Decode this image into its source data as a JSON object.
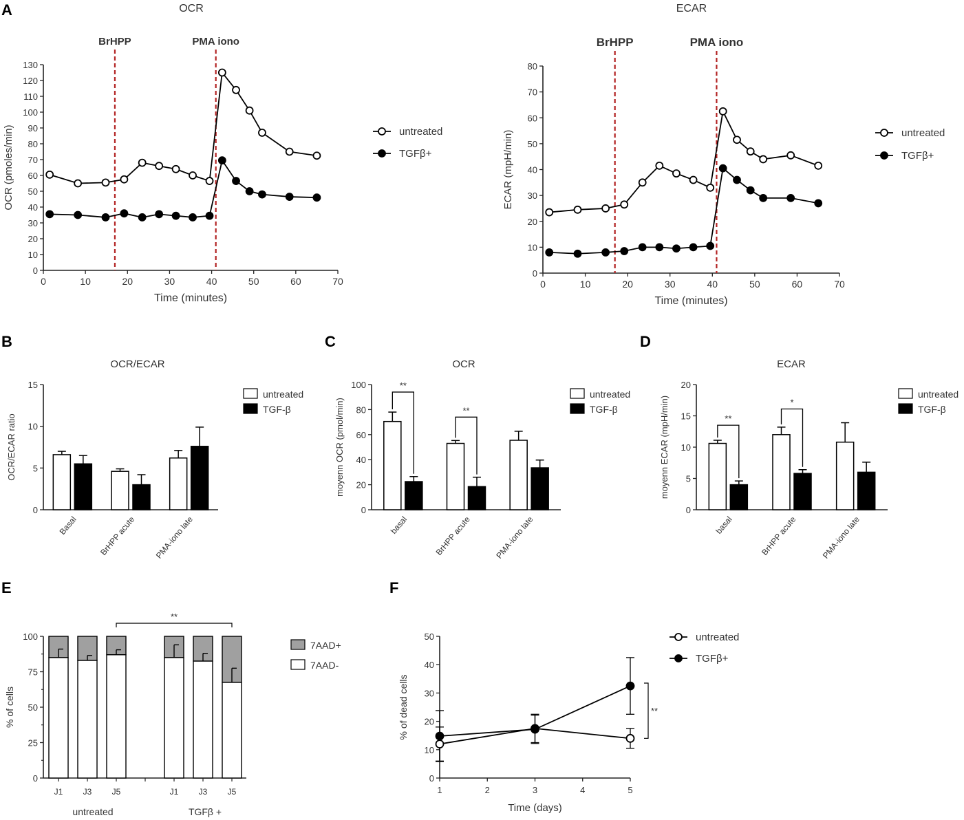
{
  "panel_labels": [
    "A",
    "B",
    "C",
    "D",
    "E",
    "F"
  ],
  "chart_data": [
    {
      "id": "A-OCR",
      "type": "line",
      "title": "OCR",
      "xlabel": "Time (minutes)",
      "ylabel": "OCR (pmoles/min)",
      "xlim": [
        0,
        70
      ],
      "ylim": [
        0,
        130
      ],
      "xticks": [
        0,
        10,
        20,
        30,
        40,
        50,
        60,
        70
      ],
      "yticks": [
        0,
        10,
        20,
        30,
        40,
        50,
        60,
        70,
        80,
        90,
        100,
        110,
        120,
        130
      ],
      "injections": [
        {
          "label": "BrHPP",
          "x": 17
        },
        {
          "label": "PMA iono",
          "x": 41
        }
      ],
      "injection_color": "#b22222",
      "legend": [
        "untreated",
        "TGFβ+"
      ],
      "series": [
        {
          "name": "untreated",
          "marker": "open",
          "x": [
            1.5,
            8.2,
            14.8,
            19.2,
            23.5,
            27.5,
            31.5,
            35.5,
            39.5,
            42.5,
            45.8,
            49,
            52,
            58.5,
            65
          ],
          "y": [
            60.5,
            55,
            55.5,
            57.5,
            68,
            66,
            64,
            60,
            56.5,
            125,
            114,
            101,
            87,
            75,
            72.5
          ]
        },
        {
          "name": "TGFβ+",
          "marker": "filled",
          "x": [
            1.5,
            8.2,
            14.8,
            19.2,
            23.5,
            27.5,
            31.5,
            35.5,
            39.5,
            42.5,
            45.8,
            49,
            52,
            58.5,
            65
          ],
          "y": [
            35.5,
            35,
            33.5,
            36,
            33.5,
            35.5,
            34.5,
            33.5,
            34.5,
            69.5,
            56.5,
            50,
            48,
            46.5,
            46
          ]
        }
      ]
    },
    {
      "id": "A-ECAR",
      "type": "line",
      "title": "ECAR",
      "xlabel": "Time (minutes)",
      "ylabel": "ECAR (mpH/min)",
      "xlim": [
        0,
        70
      ],
      "ylim": [
        0,
        80
      ],
      "xticks": [
        0,
        10,
        20,
        30,
        40,
        50,
        60,
        70
      ],
      "yticks": [
        0,
        10,
        20,
        30,
        40,
        50,
        60,
        70,
        80
      ],
      "injections": [
        {
          "label": "BrHPP",
          "x": 17
        },
        {
          "label": "PMA iono",
          "x": 41
        }
      ],
      "injection_color": "#b22222",
      "legend": [
        "untreated",
        "TGFβ+"
      ],
      "series": [
        {
          "name": "untreated",
          "marker": "open",
          "x": [
            1.5,
            8.2,
            14.8,
            19.2,
            23.5,
            27.5,
            31.5,
            35.5,
            39.5,
            42.5,
            45.8,
            49,
            52,
            58.5,
            65
          ],
          "y": [
            23.5,
            24.5,
            25,
            26.5,
            35,
            41.5,
            38.5,
            36,
            33,
            62.5,
            51.5,
            47,
            44,
            45.5,
            41.5
          ]
        },
        {
          "name": "TGFβ+",
          "marker": "filled",
          "x": [
            1.5,
            8.2,
            14.8,
            19.2,
            23.5,
            27.5,
            31.5,
            35.5,
            39.5,
            42.5,
            45.8,
            49,
            52,
            58.5,
            65
          ],
          "y": [
            8,
            7.5,
            8,
            8.5,
            10,
            10,
            9.5,
            10,
            10.5,
            40.5,
            36,
            32,
            29,
            29,
            27
          ]
        }
      ]
    },
    {
      "id": "B",
      "type": "bar",
      "title": "OCR/ECAR",
      "ylabel": "OCR/ECAR ratio",
      "ylim": [
        0,
        15
      ],
      "yticks": [
        0,
        5,
        10,
        15
      ],
      "categories": [
        "Basal",
        "BrHPP acute",
        "PMA-iono late"
      ],
      "legend": [
        "untreated",
        "TGF-β"
      ],
      "series": [
        {
          "name": "untreated",
          "fill": "#ffffff",
          "values": [
            6.6,
            4.6,
            6.2
          ],
          "errors": [
            0.4,
            0.3,
            0.9
          ]
        },
        {
          "name": "TGF-β",
          "fill": "#000000",
          "values": [
            5.5,
            3.0,
            7.6
          ],
          "errors": [
            1.0,
            1.2,
            2.3
          ]
        }
      ],
      "significance": []
    },
    {
      "id": "C",
      "type": "bar",
      "title": "OCR",
      "ylabel": "moyenn OCR (pmol/min)",
      "ylim": [
        0,
        100
      ],
      "yticks": [
        0,
        20,
        40,
        60,
        80,
        100
      ],
      "categories": [
        "basal",
        "BrHPP acute",
        "PMA-iono late"
      ],
      "legend": [
        "untreated",
        "TGF-β"
      ],
      "series": [
        {
          "name": "untreated",
          "fill": "#ffffff",
          "values": [
            70.5,
            53,
            55.5
          ],
          "errors": [
            7.5,
            2.3,
            7.2
          ]
        },
        {
          "name": "TGF-β",
          "fill": "#000000",
          "values": [
            22.5,
            18.5,
            33.5
          ],
          "errors": [
            4.0,
            7.5,
            6.2
          ]
        }
      ],
      "significance": [
        {
          "group": 0,
          "label": "**",
          "y": 94
        },
        {
          "group": 1,
          "label": "**",
          "y": 74
        }
      ]
    },
    {
      "id": "D",
      "type": "bar",
      "title": "ECAR",
      "ylabel": "moyenn ECAR (mpH/min)",
      "ylim": [
        0,
        20
      ],
      "yticks": [
        0,
        5,
        10,
        15,
        20
      ],
      "categories": [
        "basal",
        "BrHPP acute",
        "PMA-iono late"
      ],
      "legend": [
        "untreated",
        "TGF-β"
      ],
      "series": [
        {
          "name": "untreated",
          "fill": "#ffffff",
          "values": [
            10.6,
            12.0,
            10.8
          ],
          "errors": [
            0.5,
            1.2,
            3.1
          ]
        },
        {
          "name": "TGF-β",
          "fill": "#000000",
          "values": [
            4.0,
            5.8,
            6.0
          ],
          "errors": [
            0.6,
            0.6,
            1.6
          ]
        }
      ],
      "significance": [
        {
          "group": 0,
          "label": "**",
          "y": 13.5
        },
        {
          "group": 1,
          "label": "*",
          "y": 16.1
        }
      ]
    },
    {
      "id": "E",
      "type": "bar",
      "stacked": true,
      "ylabel": "% of cells",
      "ylim": [
        0,
        100
      ],
      "yticks": [
        0,
        25,
        50,
        75,
        100
      ],
      "categories": [
        "J1",
        "J3",
        "J5",
        "J1",
        "J3",
        "J5"
      ],
      "groups": [
        {
          "label": "untreated",
          "indices": [
            0,
            1,
            2
          ]
        },
        {
          "label": "TGFβ +",
          "indices": [
            3,
            4,
            5
          ]
        }
      ],
      "legend": [
        "7AAD+",
        "7AAD-"
      ],
      "series": [
        {
          "name": "7AAD-",
          "fill": "#ffffff",
          "values": [
            85,
            83,
            87,
            85,
            82.5,
            67.5
          ],
          "errors": [
            6,
            3.5,
            3.5,
            9,
            5.5,
            10
          ]
        },
        {
          "name": "7AAD+",
          "fill": "#a0a0a0",
          "values": [
            15,
            17,
            13,
            15,
            17.5,
            32.5
          ]
        }
      ],
      "significance": [
        {
          "from": 2,
          "to": 5,
          "label": "**"
        }
      ]
    },
    {
      "id": "F",
      "type": "line",
      "xlabel": "Time (days)",
      "ylabel": "% of dead cells",
      "xlim": [
        1,
        5
      ],
      "ylim": [
        0,
        50
      ],
      "xticks": [
        1,
        2,
        3,
        4,
        5
      ],
      "yticks": [
        0,
        10,
        20,
        30,
        40,
        50
      ],
      "legend": [
        "untreated",
        "TGFβ+"
      ],
      "series": [
        {
          "name": "untreated",
          "marker": "open",
          "x": [
            1,
            3,
            5
          ],
          "y": [
            12,
            17.5,
            14
          ],
          "errors": [
            6,
            5,
            3.5
          ]
        },
        {
          "name": "TGFβ+",
          "marker": "filled",
          "x": [
            1,
            3,
            5
          ],
          "y": [
            14.8,
            17.2,
            32.5
          ],
          "errors": [
            9,
            5,
            10
          ]
        }
      ],
      "significance": [
        {
          "label": "**",
          "y1": 14,
          "y2": 33.5
        }
      ]
    }
  ]
}
